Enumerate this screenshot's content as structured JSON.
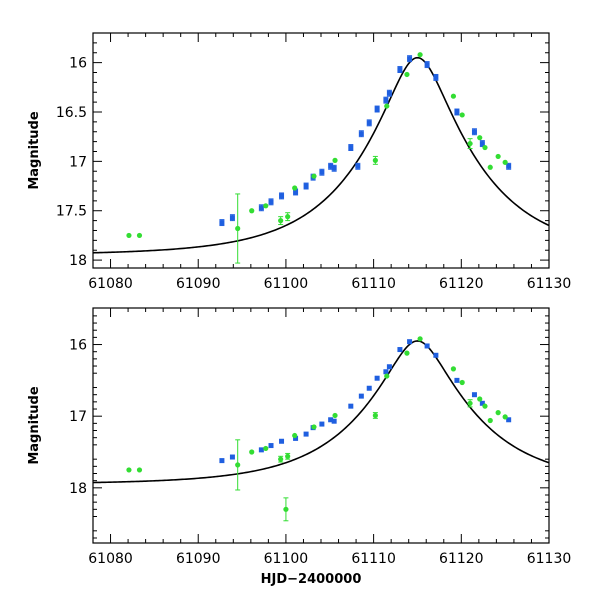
{
  "chart_data": [
    {
      "type": "scatter",
      "title": "",
      "xlabel": "",
      "ylabel": "Magnitude",
      "xlim": [
        61078,
        61130
      ],
      "ylim": [
        18.08,
        15.7
      ],
      "y_inverted": true,
      "x_ticks": [
        61080,
        61090,
        61100,
        61110,
        61120,
        61130
      ],
      "x_tick_labels": [
        "61080",
        "61090",
        "61100",
        "61110",
        "61120",
        "61130"
      ],
      "y_ticks": [
        16,
        16.5,
        17,
        17.5,
        18
      ],
      "y_tick_labels": [
        "16",
        "16.5",
        "17",
        "17.5",
        "18"
      ],
      "model_curve": {
        "name": "model",
        "color": "#000000",
        "t0": 61115.0,
        "peak_mag": 15.95,
        "baseline_mag": 17.95,
        "u0": 0.28,
        "tE": 11.0
      },
      "series": [
        {
          "name": "blue",
          "color": "#1f5fe0",
          "marker": "square",
          "points": [
            {
              "x": 61092.7,
              "y": 17.62,
              "err": 0.03
            },
            {
              "x": 61093.9,
              "y": 17.57,
              "err": 0.03
            },
            {
              "x": 61097.2,
              "y": 17.47,
              "err": 0.03
            },
            {
              "x": 61098.3,
              "y": 17.41,
              "err": 0.03
            },
            {
              "x": 61099.5,
              "y": 17.35,
              "err": 0.03
            },
            {
              "x": 61101.1,
              "y": 17.31,
              "err": 0.03
            },
            {
              "x": 61102.3,
              "y": 17.25,
              "err": 0.03
            },
            {
              "x": 61103.1,
              "y": 17.16,
              "err": 0.03
            },
            {
              "x": 61104.1,
              "y": 17.11,
              "err": 0.03
            },
            {
              "x": 61105.1,
              "y": 17.05,
              "err": 0.03
            },
            {
              "x": 61105.5,
              "y": 17.07,
              "err": 0.03
            },
            {
              "x": 61107.4,
              "y": 16.86,
              "err": 0.03
            },
            {
              "x": 61108.2,
              "y": 17.05,
              "err": 0.03
            },
            {
              "x": 61108.6,
              "y": 16.72,
              "err": 0.03
            },
            {
              "x": 61109.5,
              "y": 16.61,
              "err": 0.03
            },
            {
              "x": 61110.4,
              "y": 16.47,
              "err": 0.03
            },
            {
              "x": 61111.4,
              "y": 16.38,
              "err": 0.03
            },
            {
              "x": 61111.8,
              "y": 16.31,
              "err": 0.03
            },
            {
              "x": 61113.0,
              "y": 16.07,
              "err": 0.03
            },
            {
              "x": 61114.1,
              "y": 15.96,
              "err": 0.03
            },
            {
              "x": 61116.1,
              "y": 16.02,
              "err": 0.03
            },
            {
              "x": 61117.1,
              "y": 16.15,
              "err": 0.03
            },
            {
              "x": 61119.5,
              "y": 16.5,
              "err": 0.03
            },
            {
              "x": 61121.5,
              "y": 16.7,
              "err": 0.03
            },
            {
              "x": 61122.4,
              "y": 16.82,
              "err": 0.03
            },
            {
              "x": 61125.4,
              "y": 17.05,
              "err": 0.03
            }
          ]
        },
        {
          "name": "green",
          "color": "#33dd33",
          "marker": "circle",
          "points": [
            {
              "x": 61082.1,
              "y": 17.75,
              "err": 0.02
            },
            {
              "x": 61083.3,
              "y": 17.75,
              "err": 0.02
            },
            {
              "x": 61094.5,
              "y": 17.68,
              "err": 0.35
            },
            {
              "x": 61096.1,
              "y": 17.5,
              "err": 0.02
            },
            {
              "x": 61097.7,
              "y": 17.45,
              "err": 0.02
            },
            {
              "x": 61099.4,
              "y": 17.6,
              "err": 0.04
            },
            {
              "x": 61100.2,
              "y": 17.56,
              "err": 0.04
            },
            {
              "x": 61101.0,
              "y": 17.27,
              "err": 0.02
            },
            {
              "x": 61103.2,
              "y": 17.15,
              "err": 0.02
            },
            {
              "x": 61105.6,
              "y": 16.99,
              "err": 0.02
            },
            {
              "x": 61110.2,
              "y": 16.99,
              "err": 0.04
            },
            {
              "x": 61111.5,
              "y": 16.44,
              "err": 0.02
            },
            {
              "x": 61113.8,
              "y": 16.12,
              "err": 0.02
            },
            {
              "x": 61115.3,
              "y": 15.92,
              "err": 0.02
            },
            {
              "x": 61119.1,
              "y": 16.34,
              "err": 0.02
            },
            {
              "x": 61120.1,
              "y": 16.53,
              "err": 0.02
            },
            {
              "x": 61121.0,
              "y": 16.82,
              "err": 0.05
            },
            {
              "x": 61122.1,
              "y": 16.76,
              "err": 0.02
            },
            {
              "x": 61122.7,
              "y": 16.86,
              "err": 0.02
            },
            {
              "x": 61123.3,
              "y": 17.06,
              "err": 0.02
            },
            {
              "x": 61124.2,
              "y": 16.95,
              "err": 0.02
            },
            {
              "x": 61125.0,
              "y": 17.01,
              "err": 0.02
            }
          ]
        }
      ]
    },
    {
      "type": "scatter",
      "title": "",
      "xlabel": "HJD−2400000",
      "ylabel": "Magnitude",
      "xlim": [
        61078,
        61130
      ],
      "ylim": [
        18.77,
        15.49
      ],
      "y_inverted": true,
      "x_ticks": [
        61080,
        61090,
        61100,
        61110,
        61120,
        61130
      ],
      "x_tick_labels": [
        "61080",
        "61090",
        "61100",
        "61110",
        "61120",
        "61130"
      ],
      "y_ticks": [
        16,
        17,
        18
      ],
      "y_tick_labels": [
        "16",
        "17",
        "18"
      ],
      "model_curve": {
        "name": "model",
        "color": "#000000",
        "t0": 61115.0,
        "peak_mag": 15.95,
        "baseline_mag": 17.95,
        "u0": 0.28,
        "tE": 11.0
      },
      "series": [
        {
          "name": "blue",
          "color": "#1f5fe0",
          "marker": "square",
          "points": [
            {
              "x": 61092.7,
              "y": 17.62,
              "err": 0.03
            },
            {
              "x": 61093.9,
              "y": 17.57,
              "err": 0.03
            },
            {
              "x": 61097.2,
              "y": 17.47,
              "err": 0.03
            },
            {
              "x": 61098.3,
              "y": 17.41,
              "err": 0.03
            },
            {
              "x": 61099.5,
              "y": 17.35,
              "err": 0.03
            },
            {
              "x": 61101.1,
              "y": 17.31,
              "err": 0.03
            },
            {
              "x": 61102.3,
              "y": 17.25,
              "err": 0.03
            },
            {
              "x": 61103.1,
              "y": 17.16,
              "err": 0.03
            },
            {
              "x": 61104.1,
              "y": 17.11,
              "err": 0.03
            },
            {
              "x": 61105.1,
              "y": 17.05,
              "err": 0.03
            },
            {
              "x": 61105.5,
              "y": 17.07,
              "err": 0.03
            },
            {
              "x": 61107.4,
              "y": 16.86,
              "err": 0.03
            },
            {
              "x": 61108.6,
              "y": 16.72,
              "err": 0.03
            },
            {
              "x": 61109.5,
              "y": 16.61,
              "err": 0.03
            },
            {
              "x": 61110.4,
              "y": 16.47,
              "err": 0.03
            },
            {
              "x": 61111.4,
              "y": 16.38,
              "err": 0.03
            },
            {
              "x": 61111.8,
              "y": 16.31,
              "err": 0.03
            },
            {
              "x": 61113.0,
              "y": 16.07,
              "err": 0.03
            },
            {
              "x": 61114.1,
              "y": 15.96,
              "err": 0.03
            },
            {
              "x": 61116.1,
              "y": 16.02,
              "err": 0.03
            },
            {
              "x": 61117.1,
              "y": 16.15,
              "err": 0.03
            },
            {
              "x": 61119.5,
              "y": 16.5,
              "err": 0.03
            },
            {
              "x": 61121.5,
              "y": 16.7,
              "err": 0.03
            },
            {
              "x": 61122.4,
              "y": 16.82,
              "err": 0.03
            },
            {
              "x": 61125.4,
              "y": 17.05,
              "err": 0.03
            }
          ]
        },
        {
          "name": "green",
          "color": "#33dd33",
          "marker": "circle",
          "points": [
            {
              "x": 61082.1,
              "y": 17.75,
              "err": 0.02
            },
            {
              "x": 61083.3,
              "y": 17.75,
              "err": 0.02
            },
            {
              "x": 61094.5,
              "y": 17.68,
              "err": 0.35
            },
            {
              "x": 61096.1,
              "y": 17.5,
              "err": 0.02
            },
            {
              "x": 61097.7,
              "y": 17.45,
              "err": 0.02
            },
            {
              "x": 61099.4,
              "y": 17.6,
              "err": 0.04
            },
            {
              "x": 61100.0,
              "y": 18.3,
              "err": 0.16
            },
            {
              "x": 61100.2,
              "y": 17.56,
              "err": 0.04
            },
            {
              "x": 61101.0,
              "y": 17.27,
              "err": 0.02
            },
            {
              "x": 61103.2,
              "y": 17.15,
              "err": 0.02
            },
            {
              "x": 61105.6,
              "y": 16.99,
              "err": 0.02
            },
            {
              "x": 61110.2,
              "y": 16.99,
              "err": 0.04
            },
            {
              "x": 61111.5,
              "y": 16.44,
              "err": 0.02
            },
            {
              "x": 61113.8,
              "y": 16.12,
              "err": 0.02
            },
            {
              "x": 61115.3,
              "y": 15.92,
              "err": 0.02
            },
            {
              "x": 61119.1,
              "y": 16.34,
              "err": 0.02
            },
            {
              "x": 61120.1,
              "y": 16.53,
              "err": 0.02
            },
            {
              "x": 61121.0,
              "y": 16.82,
              "err": 0.05
            },
            {
              "x": 61122.1,
              "y": 16.76,
              "err": 0.02
            },
            {
              "x": 61122.7,
              "y": 16.86,
              "err": 0.02
            },
            {
              "x": 61123.3,
              "y": 17.06,
              "err": 0.02
            },
            {
              "x": 61124.2,
              "y": 16.95,
              "err": 0.02
            },
            {
              "x": 61125.0,
              "y": 17.01,
              "err": 0.02
            }
          ]
        }
      ]
    }
  ]
}
